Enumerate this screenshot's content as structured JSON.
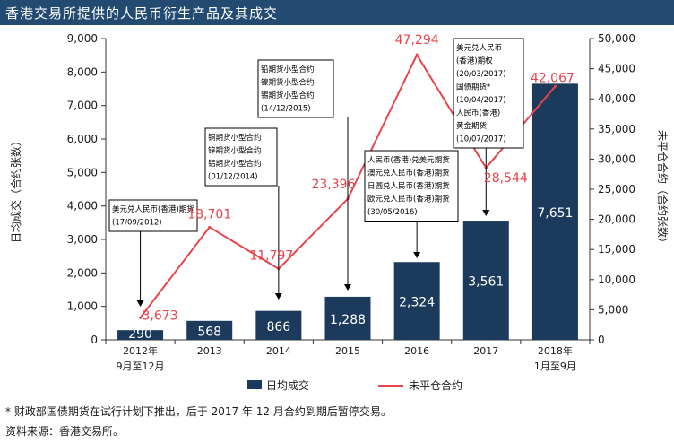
{
  "title": "香港交易所提供的人民币衍生产品及其成交",
  "footnote": "* 财政部国债期货在试行计划下推出，后于 2017 年 12 月合约到期后暂停交易。",
  "source": "资料来源：香港交易所。",
  "colors": {
    "bar": "#1b3a5c",
    "line": "#e8434a",
    "title_bg": "#234b71",
    "axis": "#333333"
  },
  "chart_data": {
    "type": "bar+line",
    "categories": [
      "2012年\n9月至12月",
      "2013",
      "2014",
      "2015",
      "2016",
      "2017",
      "2018年\n1月至9月"
    ],
    "series": [
      {
        "name": "日均成交",
        "type": "bar",
        "axis": "left",
        "values": [
          290,
          568,
          866,
          1288,
          2324,
          3561,
          7651
        ],
        "labels": [
          "290",
          "568",
          "866",
          "1,288",
          "2,324",
          "3,561",
          "7,651"
        ]
      },
      {
        "name": "未平仓合约",
        "type": "line",
        "axis": "right",
        "values": [
          3673,
          18701,
          11797,
          23396,
          47294,
          28544,
          42067
        ],
        "labels": [
          "3,673",
          "18,701",
          "11,797",
          "23,396",
          "47,294",
          "28,544",
          "42,067"
        ]
      }
    ],
    "y_left": {
      "label": "日均成交（合约张数）",
      "ylim": [
        0,
        9000
      ],
      "ticks": [
        "0",
        "1,000",
        "2,000",
        "3,000",
        "4,000",
        "5,000",
        "6,000",
        "7,000",
        "8,000",
        "9,000"
      ]
    },
    "y_right": {
      "label": "未平仓合约（合约张数）",
      "ylim": [
        0,
        50000
      ],
      "ticks": [
        "0",
        "5,000",
        "10,000",
        "15,000",
        "20,000",
        "25,000",
        "30,000",
        "35,000",
        "40,000",
        "45,000",
        "50,000"
      ]
    },
    "legend": [
      "日均成交",
      "未平仓合约"
    ],
    "legend_position": "bottom",
    "annotations": [
      {
        "category_index": 0,
        "lines": [
          "美元兑人民币(香港)期货",
          "(17/09/2012)"
        ]
      },
      {
        "category_index": 2,
        "lines": [
          "铜期货小型合约",
          "锌期货小型合约",
          "铝期货小型合约",
          "(01/12/2014)"
        ]
      },
      {
        "category_index": 3,
        "lines": [
          "铅期货小型合约",
          "镍期货小型合约",
          "锡期货小型合约",
          "(14/12/2015)"
        ]
      },
      {
        "category_index": 4,
        "lines": [
          "人民币(香港)兑美元期货",
          "澳元兑人民币(香港)期货",
          "日圆兑人民币(香港)期货",
          "欧元兑人民币(香港)期货",
          "(30/05/2016)"
        ]
      },
      {
        "category_index": 5,
        "lines": [
          "美元兑人民币",
          "(香港)期权",
          "(20/03/2017)",
          "国债期货*",
          "(10/04/2017)",
          "人民币(香港)",
          "黄金期货",
          "(10/07/2017)"
        ]
      }
    ]
  }
}
